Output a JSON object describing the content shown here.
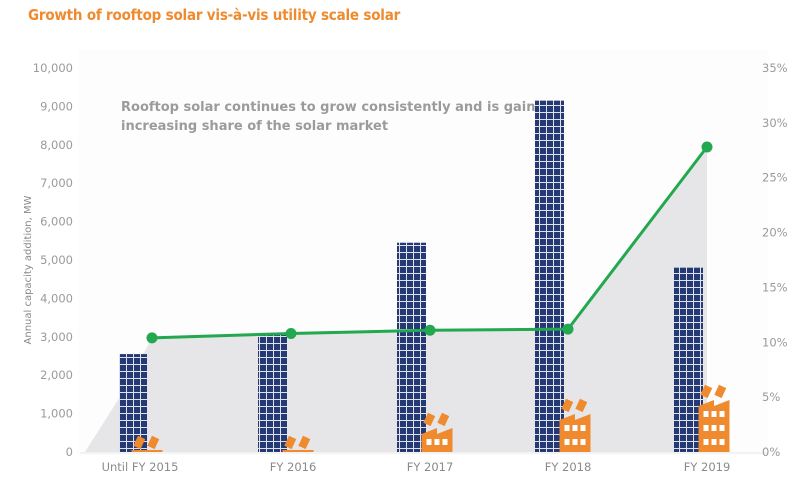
{
  "chart_data": {
    "type": "bar",
    "title": "Growth of rooftop solar vis-à-vis utility scale solar",
    "annotation": [
      "Rooftop solar continues to grow consistently and is gaining",
      "increasing share of the solar market"
    ],
    "ylabel": "Annual capacity addition, MW",
    "categories": [
      "Until FY 2015",
      "FY 2016",
      "FY 2017",
      "FY 2018",
      "FY 2019"
    ],
    "ylim": [
      0,
      10000
    ],
    "yticks": [
      "0",
      "1,000",
      "2,000",
      "3,000",
      "4,000",
      "5,000",
      "6,000",
      "7,000",
      "8,000",
      "9,000",
      "10,000"
    ],
    "y2lim": [
      0,
      35
    ],
    "y2ticks": [
      "0%",
      "5%",
      "10%",
      "15%",
      "20%",
      "25%",
      "30%",
      "35%"
    ],
    "series": [
      {
        "type": "bar",
        "axis": "left",
        "values": [
          2550,
          3100,
          5450,
          9150,
          4800
        ],
        "color": "#253a75"
      },
      {
        "type": "line",
        "axis": "right",
        "values": [
          10.4,
          10.8,
          11.1,
          11.2,
          27.8
        ],
        "color": "#22a84e"
      }
    ],
    "area_color": "#e6e6e8",
    "icon_color": "#ef8a2e",
    "icons": "factory-with-rooftop-solar-icon",
    "grid": false
  }
}
